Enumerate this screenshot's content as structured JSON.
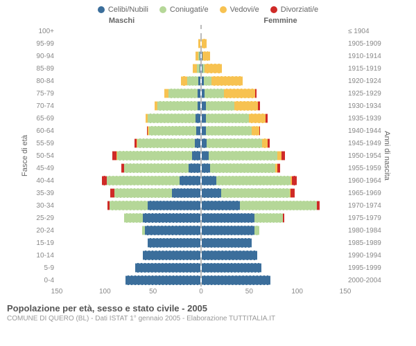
{
  "chart": {
    "type": "population-pyramid",
    "legend": [
      {
        "label": "Celibi/Nubili",
        "color": "#3b6e9b"
      },
      {
        "label": "Coniugati/e",
        "color": "#b5d798"
      },
      {
        "label": "Vedovi/e",
        "color": "#f7c251"
      },
      {
        "label": "Divorziati/e",
        "color": "#cf2a27"
      }
    ],
    "header_left": "Maschi",
    "header_right": "Femmine",
    "y_left_title": "Fasce di età",
    "y_right_title": "Anni di nascita",
    "x_max": 150,
    "x_ticks": [
      150,
      100,
      50,
      0,
      50,
      100,
      150
    ],
    "background_color": "#ffffff",
    "grid_color": "#eeeeee",
    "rows": [
      {
        "age": "100+",
        "birth": "≤ 1904",
        "m": [
          0,
          0,
          0,
          0
        ],
        "f": [
          0,
          0,
          0,
          0
        ]
      },
      {
        "age": "95-99",
        "birth": "1905-1909",
        "m": [
          0,
          0,
          2,
          0
        ],
        "f": [
          0,
          0,
          5,
          0
        ]
      },
      {
        "age": "90-94",
        "birth": "1910-1914",
        "m": [
          1,
          1,
          3,
          0
        ],
        "f": [
          1,
          0,
          8,
          0
        ]
      },
      {
        "age": "85-89",
        "birth": "1915-1919",
        "m": [
          1,
          3,
          4,
          0
        ],
        "f": [
          1,
          2,
          18,
          0
        ]
      },
      {
        "age": "80-84",
        "birth": "1920-1924",
        "m": [
          2,
          12,
          6,
          0
        ],
        "f": [
          2,
          8,
          33,
          0
        ]
      },
      {
        "age": "75-79",
        "birth": "1925-1929",
        "m": [
          3,
          30,
          5,
          0
        ],
        "f": [
          3,
          20,
          33,
          1
        ]
      },
      {
        "age": "70-74",
        "birth": "1930-1934",
        "m": [
          3,
          42,
          3,
          0
        ],
        "f": [
          4,
          30,
          25,
          2
        ]
      },
      {
        "age": "65-69",
        "birth": "1935-1939",
        "m": [
          5,
          50,
          2,
          0
        ],
        "f": [
          4,
          45,
          18,
          2
        ]
      },
      {
        "age": "60-64",
        "birth": "1940-1944",
        "m": [
          4,
          50,
          1,
          1
        ],
        "f": [
          4,
          48,
          8,
          1
        ]
      },
      {
        "age": "55-59",
        "birth": "1945-1949",
        "m": [
          6,
          60,
          1,
          2
        ],
        "f": [
          5,
          58,
          6,
          2
        ]
      },
      {
        "age": "50-54",
        "birth": "1950-1954",
        "m": [
          9,
          78,
          1,
          4
        ],
        "f": [
          7,
          72,
          4,
          4
        ]
      },
      {
        "age": "45-49",
        "birth": "1955-1959",
        "m": [
          12,
          68,
          0,
          3
        ],
        "f": [
          9,
          68,
          2,
          3
        ]
      },
      {
        "age": "40-44",
        "birth": "1960-1964",
        "m": [
          22,
          76,
          0,
          5
        ],
        "f": [
          15,
          78,
          1,
          5
        ]
      },
      {
        "age": "35-39",
        "birth": "1965-1969",
        "m": [
          30,
          60,
          0,
          4
        ],
        "f": [
          20,
          72,
          1,
          4
        ]
      },
      {
        "age": "30-34",
        "birth": "1970-1974",
        "m": [
          55,
          40,
          0,
          2
        ],
        "f": [
          40,
          80,
          0,
          3
        ]
      },
      {
        "age": "25-29",
        "birth": "1975-1979",
        "m": [
          60,
          20,
          0,
          0
        ],
        "f": [
          55,
          30,
          0,
          1
        ]
      },
      {
        "age": "20-24",
        "birth": "1980-1984",
        "m": [
          58,
          3,
          0,
          0
        ],
        "f": [
          55,
          5,
          0,
          0
        ]
      },
      {
        "age": "15-19",
        "birth": "1985-1989",
        "m": [
          55,
          0,
          0,
          0
        ],
        "f": [
          52,
          0,
          0,
          0
        ]
      },
      {
        "age": "10-14",
        "birth": "1990-1994",
        "m": [
          60,
          0,
          0,
          0
        ],
        "f": [
          58,
          0,
          0,
          0
        ]
      },
      {
        "age": "5-9",
        "birth": "1995-1999",
        "m": [
          68,
          0,
          0,
          0
        ],
        "f": [
          62,
          0,
          0,
          0
        ]
      },
      {
        "age": "0-4",
        "birth": "2000-2004",
        "m": [
          78,
          0,
          0,
          0
        ],
        "f": [
          72,
          0,
          0,
          0
        ]
      }
    ],
    "footer_title": "Popolazione per età, sesso e stato civile - 2005",
    "footer_sub": "COMUNE DI QUERO (BL) - Dati ISTAT 1° gennaio 2005 - Elaborazione TUTTITALIA.IT"
  }
}
